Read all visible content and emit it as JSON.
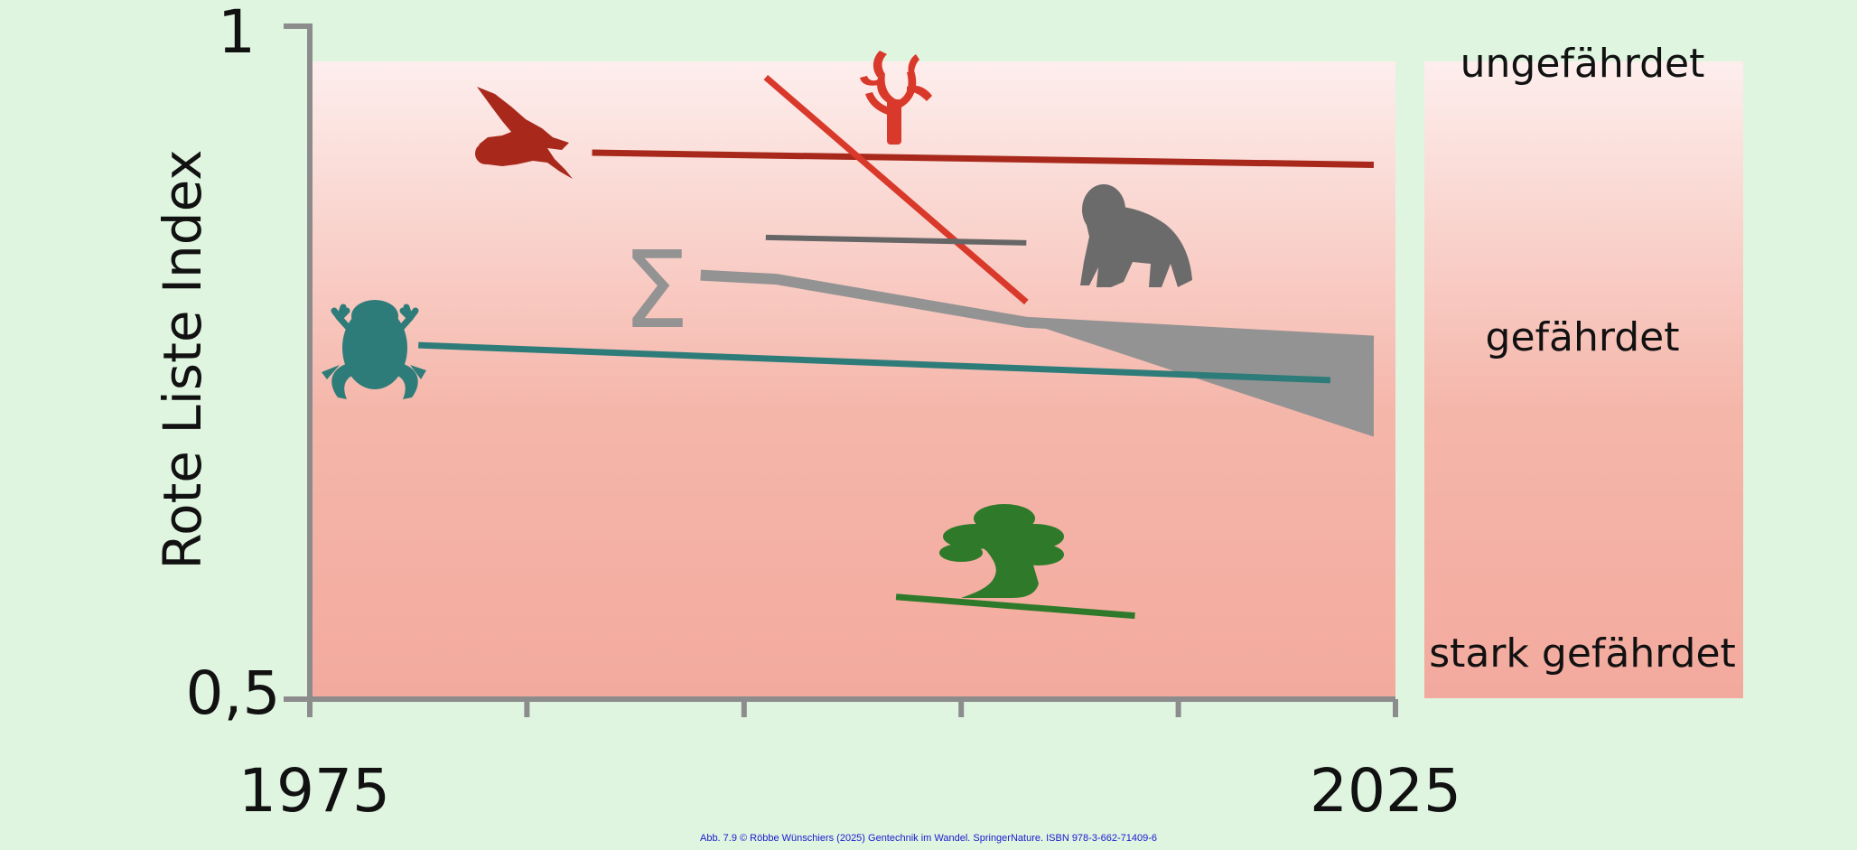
{
  "chart_data": {
    "type": "line",
    "ylabel": "Rote Liste Index",
    "xlim": [
      1975,
      2025
    ],
    "ylim": [
      0.5,
      1
    ],
    "x_tick_labels": [
      "1975",
      "2025"
    ],
    "y_tick_labels": [
      "1",
      "0,5"
    ],
    "grid": false,
    "series": [
      {
        "icon": "bird-icon",
        "color": "#a8291b",
        "width": 7,
        "points": [
          [
            1988,
            0.906
          ],
          [
            2024,
            0.897
          ]
        ]
      },
      {
        "icon": "coral-icon",
        "color": "#d9392a",
        "width": 7,
        "points": [
          [
            1996,
            0.962
          ],
          [
            2008,
            0.795
          ]
        ]
      },
      {
        "icon": "gorilla-icon",
        "color": "#666666",
        "width": 6,
        "points": [
          [
            1996,
            0.843
          ],
          [
            2008,
            0.839
          ]
        ]
      },
      {
        "icon": "frog-icon",
        "color": "#2e7c79",
        "width": 7,
        "points": [
          [
            1980,
            0.763
          ],
          [
            2022,
            0.737
          ]
        ]
      },
      {
        "icon": "cycad-icon",
        "color": "#2f7a2a",
        "width": 7,
        "points": [
          [
            2002,
            0.576
          ],
          [
            2013,
            0.562
          ]
        ]
      }
    ],
    "aggregate": {
      "icon": "sigma-icon",
      "color": "#939393",
      "line": [
        [
          1993,
          0.815
        ],
        [
          1996.5,
          0.812
        ],
        [
          2008,
          0.78
        ],
        [
          2024,
          0.766
        ]
      ],
      "band_upper": [
        [
          2008,
          0.78
        ],
        [
          2024,
          0.766
        ]
      ],
      "band_lower": [
        [
          2008,
          0.78
        ],
        [
          2024,
          0.695
        ]
      ]
    },
    "threat_scale": [
      "ungefährdet",
      "gefährdet",
      "stark gefährdet"
    ]
  },
  "credit": "Abb. 7.9 © Röbbe Wünschiers (2025) Gentechnik im Wandel. SpringerNature. ISBN 978-3-662-71409-6"
}
